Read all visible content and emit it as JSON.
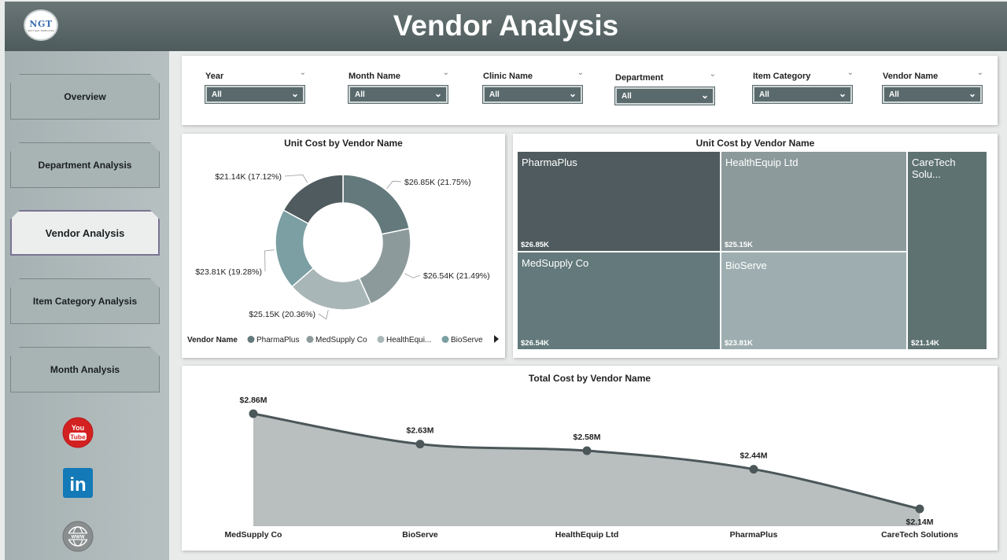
{
  "header": {
    "title": "Vendor Analysis",
    "logo_text": "NGT",
    "logo_subtext": "NEXT GEN TEMPLATES"
  },
  "sidebar": {
    "items": [
      {
        "label": "Overview",
        "active": false
      },
      {
        "label": "Department Analysis",
        "active": false
      },
      {
        "label": "Vendor Analysis",
        "active": true
      },
      {
        "label": "Item Category Analysis",
        "active": false
      },
      {
        "label": "Month Analysis",
        "active": false
      }
    ],
    "social": [
      {
        "icon": "youtube-icon",
        "label": "You Tube"
      },
      {
        "icon": "linkedin-icon",
        "label": "in"
      },
      {
        "icon": "globe-icon",
        "label": "WWW"
      }
    ]
  },
  "filters": [
    {
      "label": "Year",
      "value": "All"
    },
    {
      "label": "Month Name",
      "value": "All"
    },
    {
      "label": "Clinic Name",
      "value": "All"
    },
    {
      "label": "Department",
      "value": "All"
    },
    {
      "label": "Item Category",
      "value": "All"
    },
    {
      "label": "Vendor Name",
      "value": "All"
    }
  ],
  "colors": {
    "header": "#56635f",
    "pharmaplus": "#4f5b5e",
    "medsupply": "#63797b",
    "healthequip": "#8d9a9b",
    "bioserve": "#9eaeb0",
    "caretech": "#5f7272",
    "line": "#4b5759",
    "area": "#b9bfbf"
  },
  "chart_data": [
    {
      "type": "pie",
      "title": "Unit Cost by Vendor Name",
      "legend_title": "Vendor Name",
      "legend_items": [
        "PharmaPlus",
        "MedSupply Co",
        "HealthEqui...",
        "BioServe"
      ],
      "slices": [
        {
          "name": "PharmaPlus",
          "value": 26.85,
          "label": "$26.85K (21.75%)",
          "color": "#63797b"
        },
        {
          "name": "MedSupply Co",
          "value": 26.54,
          "label": "$26.54K (21.49%)",
          "color": "#8d9a9b"
        },
        {
          "name": "HealthEquip Ltd",
          "value": 25.15,
          "label": "$25.15K (20.36%)",
          "color": "#a9b6b7"
        },
        {
          "name": "BioServe",
          "value": 23.81,
          "label": "$23.81K (19.28%)",
          "color": "#7b9fa3"
        },
        {
          "name": "CareTech Solutions",
          "value": 21.14,
          "label": "$21.14K (17.12%)",
          "color": "#4f5b5e"
        }
      ]
    },
    {
      "type": "treemap",
      "title": "Unit Cost by Vendor Name",
      "tiles": [
        {
          "name": "PharmaPlus",
          "value": "$26.85K",
          "color": "#4f5b5e"
        },
        {
          "name": "HealthEquip Ltd",
          "value": "$25.15K",
          "color": "#8d9a9b"
        },
        {
          "name": "CareTech Solu...",
          "value": "$21.14K",
          "color": "#5f7272"
        },
        {
          "name": "MedSupply Co",
          "value": "$26.54K",
          "color": "#63797b"
        },
        {
          "name": "BioServe",
          "value": "$23.81K",
          "color": "#9eaeb0"
        }
      ]
    },
    {
      "type": "area",
      "title": "Total Cost by Vendor Name",
      "categories": [
        "MedSupply Co",
        "BioServe",
        "HealthEquip Ltd",
        "PharmaPlus",
        "CareTech Solutions"
      ],
      "values": [
        2.86,
        2.63,
        2.58,
        2.44,
        2.14
      ],
      "labels": [
        "$2.86M",
        "$2.63M",
        "$2.58M",
        "$2.44M",
        "$2.14M"
      ],
      "ylim": [
        0,
        2.86
      ]
    }
  ]
}
